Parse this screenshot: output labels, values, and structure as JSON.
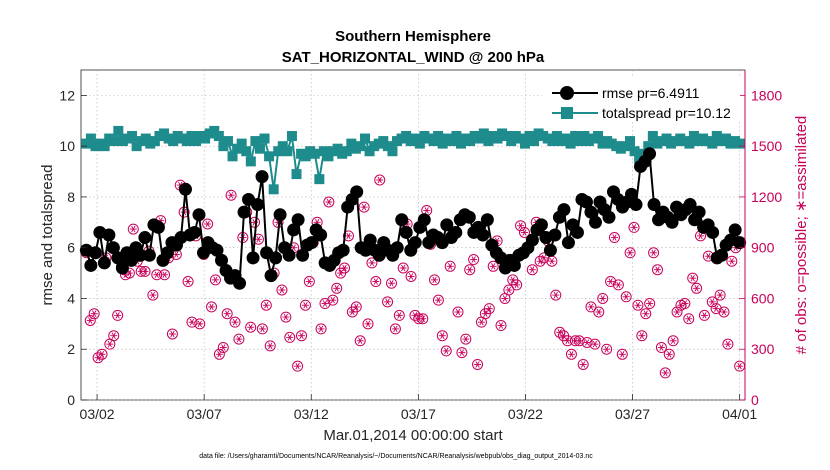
{
  "chart_data": {
    "type": "line",
    "title": "Southern Hemisphere",
    "subtitle": "SAT_HORIZONTAL_WIND @ 200 hPa",
    "xlabel": "Mar.01,2014 00:00:00 start",
    "ylabel": "rmse and totalspread",
    "ylabel_right": "# of obs: o=possible; ∗=assimilated",
    "x_ticks": [
      {
        "day": 2,
        "label": "03/02"
      },
      {
        "day": 7,
        "label": "03/07"
      },
      {
        "day": 12,
        "label": "03/12"
      },
      {
        "day": 17,
        "label": "03/17"
      },
      {
        "day": 22,
        "label": "03/22"
      },
      {
        "day": 27,
        "label": "03/27"
      },
      {
        "day": 32,
        "label": "04/01"
      }
    ],
    "xlim": [
      1.25,
      32.25
    ],
    "ylim": [
      0,
      13
    ],
    "ylim_right": [
      0,
      1950
    ],
    "y_ticks": [
      "0",
      "2",
      "4",
      "6",
      "8",
      "10",
      "12"
    ],
    "y_ticks_right": [
      "0",
      "300",
      "600",
      "900",
      "1200",
      "1500",
      "1800"
    ],
    "y_tick_values": [
      0,
      2,
      4,
      6,
      8,
      10,
      12
    ],
    "y_tick_values_right": [
      0,
      300,
      600,
      900,
      1200,
      1500,
      1800
    ],
    "legend_position": "top-right",
    "series": [
      {
        "name": "rmse pr=6.4911",
        "color": "#000000",
        "marker": "circle",
        "axis": "left",
        "values": [
          5.9,
          5.3,
          5.8,
          6.6,
          5.4,
          6.5,
          6.0,
          5.6,
          5.2,
          5.8,
          5.5,
          6.0,
          5.7,
          6.4,
          5.7,
          6.9,
          6.8,
          5.5,
          5.8,
          6.2,
          6.1,
          6.4,
          8.3,
          6.5,
          6.6,
          7.3,
          5.8,
          6.2,
          6.0,
          5.9,
          5.5,
          5.1,
          4.8,
          4.9,
          4.6,
          7.4,
          7.9,
          5.6,
          7.7,
          8.8,
          5.8,
          4.9,
          5.6,
          7.3,
          6.0,
          5.7,
          6.7,
          7.1,
          5.7,
          6.1,
          6.2,
          6.7,
          6.5,
          5.4,
          5.3,
          5.5,
          5.8,
          5.9,
          7.6,
          7.9,
          8.2,
          6.0,
          5.9,
          6.3,
          5.9,
          5.7,
          6.2,
          5.9,
          5.7,
          6.0,
          7.1,
          6.6,
          5.9,
          6.2,
          6.8,
          7.1,
          6.2,
          6.5,
          6.4,
          6.2,
          6.9,
          6.4,
          6.6,
          7.1,
          7.3,
          7.2,
          6.6,
          6.8,
          6.5,
          7.1,
          6.1,
          5.8,
          5.6,
          5.2,
          5.5,
          5.3,
          5.7,
          5.8,
          6.0,
          6.3,
          6.7,
          6.9,
          6.4,
          5.9,
          6.5,
          7.2,
          7.5,
          6.2,
          6.9,
          6.6,
          7.9,
          7.8,
          7.4,
          7.0,
          7.8,
          7.5,
          7.2,
          8.2,
          7.9,
          7.6,
          7.8,
          8.1,
          7.7,
          9.2,
          9.4,
          9.7,
          7.7,
          7.1,
          7.4,
          7.2,
          7.0,
          7.6,
          7.3,
          7.5,
          7.7,
          7.1,
          7.4,
          6.8,
          6.9,
          6.6,
          5.6,
          5.7,
          6.1,
          6.3,
          6.7,
          6.2
        ],
        "note_x_start_day": 1.5,
        "note_x_step_days": 0.2083
      },
      {
        "name": "totalspread pr=10.12",
        "color": "#1e8c8c",
        "marker": "square",
        "axis": "left",
        "values": [
          10.1,
          10.3,
          10.0,
          10.1,
          10.0,
          10.3,
          10.2,
          10.6,
          10.2,
          10.3,
          10.4,
          10.0,
          10.2,
          10.3,
          10.1,
          10.2,
          10.4,
          10.5,
          10.3,
          10.2,
          10.4,
          10.3,
          10.2,
          10.4,
          10.2,
          10.4,
          10.3,
          10.5,
          10.6,
          10.4,
          10.0,
          10.2,
          9.6,
          9.9,
          10.1,
          9.8,
          9.4,
          10.2,
          9.9,
          10.3,
          9.6,
          8.3,
          9.8,
          10.0,
          9.8,
          10.4,
          8.9,
          9.7,
          9.6,
          9.8,
          9.7,
          8.7,
          9.8,
          9.6,
          9.8,
          9.9,
          9.7,
          9.8,
          10.1,
          9.9,
          10.0,
          10.3,
          9.8,
          10.0,
          10.1,
          10.2,
          10.0,
          9.8,
          10.2,
          10.3,
          10.4,
          10.2,
          10.3,
          10.1,
          10.4,
          10.3,
          10.2,
          10.4,
          10.1,
          10.3,
          10.2,
          10.4,
          10.1,
          10.3,
          10.2,
          10.4,
          10.3,
          10.5,
          10.2,
          10.4,
          10.3,
          10.5,
          10.4,
          10.2,
          10.4,
          10.3,
          10.1,
          10.4,
          10.2,
          10.5,
          10.4,
          10.3,
          10.2,
          10.4,
          10.2,
          10.3,
          10.1,
          10.4,
          10.2,
          10.4,
          10.2,
          10.3,
          10.4,
          10.1,
          10.2,
          10.1,
          10.0,
          9.9,
          10.0,
          10.2,
          9.8,
          9.5,
          9.7,
          10.0,
          10.4,
          10.1,
          10.2,
          10.3,
          10.1,
          10.2,
          10.3,
          10.2,
          10.1,
          10.4,
          10.2,
          10.3,
          10.2,
          10.1,
          10.4,
          10.2,
          10.3,
          10.1,
          10.2,
          10.1
        ]
      },
      {
        "name": "obs possible",
        "color": "#c8005a",
        "marker": "circle-open",
        "axis": "right",
        "values": [
          870,
          470,
          510,
          250,
          270,
          840,
          330,
          380,
          500,
          790,
          740,
          750,
          1010,
          820,
          760,
          760,
          880,
          620,
          740,
          1060,
          740,
          840,
          390,
          860,
          1270,
          1110,
          700,
          460,
          970,
          450,
          860,
          1040,
          550,
          710,
          270,
          310,
          510,
          1210,
          460,
          360,
          960,
          1110,
          430,
          1050,
          950,
          420,
          560,
          320,
          750,
          1050,
          650,
          490,
          370,
          900,
          200,
          380,
          560,
          700,
          930,
          1050,
          420,
          570,
          1170,
          590,
          660,
          750,
          780,
          970,
          520,
          550,
          350,
          1140,
          450,
          810,
          700,
          1300,
          880,
          580,
          690,
          420,
          500,
          780,
          1040,
          730,
          500,
          480,
          480,
          1120,
          920,
          710,
          590,
          380,
          290,
          790,
          980,
          520,
          280,
          360,
          770,
          830,
          210,
          460,
          510,
          540,
          790,
          940,
          440,
          600,
          650,
          710,
          680,
          1030,
          990,
          900,
          770,
          1050,
          820,
          840,
          940,
          820,
          620,
          400,
          380,
          350,
          270,
          350,
          350,
          210,
          340,
          550,
          330,
          520,
          600,
          300,
          700,
          960,
          680,
          270,
          610,
          870,
          1020,
          560,
          380,
          510,
          570,
          870,
          770,
          310,
          160,
          270,
          350,
          520,
          560,
          570,
          480,
          720,
          660,
          970,
          500,
          850,
          580,
          540,
          620,
          520,
          330,
          820,
          900,
          200
        ],
        "note": "sampled from the picture; o symbols"
      }
    ],
    "footnote": "data file: /Users/gharamti/Documents/NCAR/Reanalysis/~/Documents/NCAR/Reanalysis/webpub/obs_diag_output_2014-03.nc"
  }
}
